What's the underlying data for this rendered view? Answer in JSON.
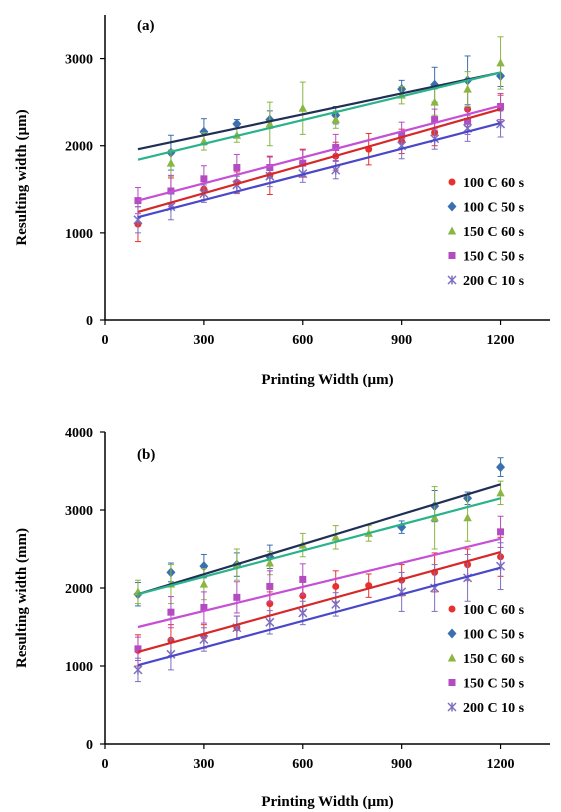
{
  "chart_data": [
    {
      "type": "scatter",
      "panel_label": "(a)",
      "xlabel": "Printing Width (µm)",
      "ylabel": "Resulting width (µm)",
      "xlim": [
        0,
        1350
      ],
      "ylim": [
        0,
        3500
      ],
      "xticks": [
        "0",
        "300",
        "600",
        "900",
        "1200"
      ],
      "yticks": [
        "0",
        "1000",
        "2000",
        "3000"
      ],
      "grid": false,
      "legend_position": "right",
      "x": [
        100,
        200,
        300,
        400,
        500,
        600,
        700,
        800,
        900,
        1000,
        1100,
        1200
      ],
      "series": [
        {
          "name": "100 C 60 s",
          "color": "#e8312f",
          "marker": "circle",
          "values": [
            1100,
            1480,
            1500,
            1580,
            1660,
            1800,
            1880,
            1960,
            2050,
            2150,
            2420,
            2430
          ],
          "errors": [
            200,
            150,
            120,
            120,
            220,
            160,
            160,
            180,
            140,
            150,
            200,
            150
          ],
          "fit": [
            1240,
            2420
          ]
        },
        {
          "name": "100 C 50 s",
          "color": "#3b6fb0",
          "marker": "diamond",
          "values": [
            null,
            1920,
            2160,
            2250,
            2300,
            null,
            2350,
            null,
            2650,
            2700,
            2750,
            2800
          ],
          "errors": [
            0,
            200,
            150,
            50,
            100,
            0,
            100,
            0,
            100,
            200,
            280,
            120
          ],
          "fit": [
            1960,
            2840
          ]
        },
        {
          "name": "150 C 60 s",
          "color": "#8bb641",
          "marker": "triangle",
          "values": [
            null,
            1800,
            2050,
            2120,
            2250,
            2430,
            2300,
            null,
            2580,
            2500,
            2650,
            2950
          ],
          "errors": [
            0,
            150,
            100,
            80,
            250,
            300,
            100,
            0,
            100,
            150,
            200,
            300
          ],
          "fit": [
            1840,
            2840
          ]
        },
        {
          "name": "150 C 50 s",
          "color": "#b44cc1",
          "marker": "square",
          "values": [
            1370,
            1480,
            1620,
            1750,
            1750,
            1800,
            1980,
            null,
            2120,
            2300,
            2280,
            2450
          ],
          "errors": [
            150,
            180,
            150,
            150,
            120,
            150,
            150,
            0,
            150,
            120,
            150,
            150
          ],
          "fit": [
            1370,
            2460
          ]
        },
        {
          "name": "200 C 10 s",
          "color": "#7d6fc2",
          "marker": "star",
          "values": [
            1150,
            1300,
            1450,
            1550,
            1650,
            1680,
            1720,
            null,
            2000,
            2080,
            2200,
            2250
          ],
          "errors": [
            150,
            150,
            100,
            100,
            120,
            100,
            100,
            0,
            150,
            120,
            150,
            150
          ],
          "fit": [
            1180,
            2260
          ]
        }
      ],
      "fit_colors": [
        "#d62828",
        "#1f2f56",
        "#2ab38a",
        "#c64fd6",
        "#4b47c9"
      ]
    },
    {
      "type": "scatter",
      "panel_label": "(b)",
      "xlabel": "Printing Width (µm)",
      "ylabel": "Resulting width (mm)",
      "xlim": [
        0,
        1350
      ],
      "ylim": [
        0,
        4000
      ],
      "xticks": [
        "0",
        "300",
        "600",
        "900",
        "1200"
      ],
      "yticks": [
        "0",
        "1000",
        "2000",
        "3000",
        "4000"
      ],
      "grid": false,
      "legend_position": "right",
      "x": [
        100,
        200,
        300,
        400,
        500,
        600,
        700,
        800,
        900,
        1000,
        1100,
        1200
      ],
      "series": [
        {
          "name": "100 C 60 s",
          "color": "#e8312f",
          "marker": "circle",
          "values": [
            1200,
            1330,
            1380,
            1490,
            1800,
            1900,
            2020,
            2030,
            2100,
            2200,
            2300,
            2400
          ],
          "errors": [
            200,
            200,
            150,
            150,
            150,
            200,
            200,
            150,
            200,
            250,
            200,
            250
          ],
          "fit": [
            1180,
            2460
          ]
        },
        {
          "name": "100 C 50 s",
          "color": "#3b6fb0",
          "marker": "diamond",
          "values": [
            1920,
            2200,
            2280,
            2300,
            2400,
            null,
            null,
            null,
            2780,
            3050,
            3150,
            3550
          ],
          "errors": [
            150,
            120,
            150,
            150,
            150,
            0,
            0,
            0,
            80,
            200,
            80,
            120
          ],
          "fit": [
            1920,
            3330
          ]
        },
        {
          "name": "150 C 60 s",
          "color": "#8bb641",
          "marker": "triangle",
          "values": [
            1950,
            2050,
            2050,
            2300,
            2320,
            2550,
            2650,
            2700,
            null,
            2900,
            2900,
            3220
          ],
          "errors": [
            150,
            250,
            200,
            200,
            150,
            150,
            150,
            100,
            0,
            400,
            300,
            150
          ],
          "fit": [
            1920,
            3150
          ]
        },
        {
          "name": "150 C 50 s",
          "color": "#b44cc1",
          "marker": "square",
          "values": [
            1220,
            1690,
            1750,
            1880,
            2020,
            2110,
            null,
            null,
            null,
            null,
            null,
            2720
          ],
          "errors": [
            150,
            200,
            200,
            200,
            200,
            200,
            0,
            0,
            0,
            0,
            0,
            200
          ],
          "fit": [
            1500,
            2630
          ]
        },
        {
          "name": "200 C 10 s",
          "color": "#7d6fc2",
          "marker": "star",
          "values": [
            950,
            1150,
            1340,
            1490,
            1560,
            1680,
            1790,
            null,
            1950,
            2000,
            2130,
            2280
          ],
          "errors": [
            150,
            200,
            150,
            150,
            150,
            150,
            150,
            0,
            250,
            300,
            300,
            300
          ],
          "fit": [
            1010,
            2260
          ]
        }
      ],
      "fit_colors": [
        "#d62828",
        "#1f2f56",
        "#2ab38a",
        "#c64fd6",
        "#4b47c9"
      ]
    }
  ]
}
